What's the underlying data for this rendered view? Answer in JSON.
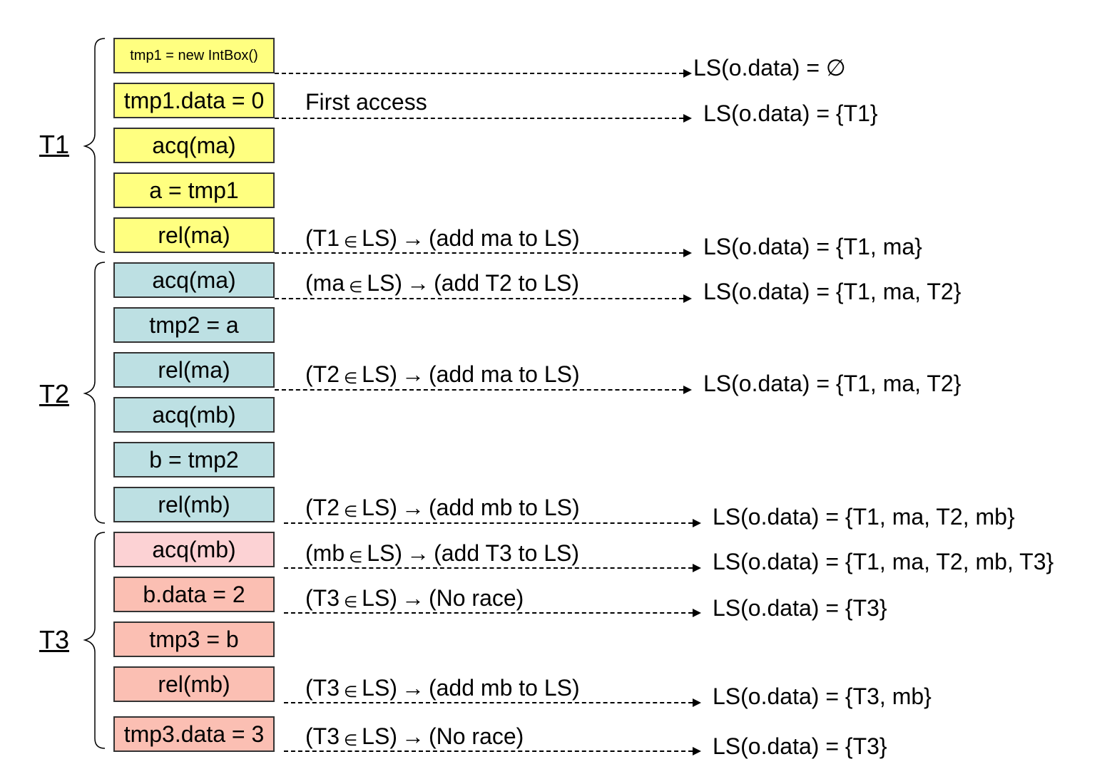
{
  "threads": [
    {
      "label": "T1"
    },
    {
      "label": "T2"
    },
    {
      "label": "T3"
    }
  ],
  "steps": [
    {
      "text": "tmp1 = new IntBox()",
      "thread": "T1"
    },
    {
      "text": "tmp1.data = 0",
      "thread": "T1"
    },
    {
      "text": "acq(ma)",
      "thread": "T1"
    },
    {
      "text": "a = tmp1",
      "thread": "T1"
    },
    {
      "text": "rel(ma)",
      "thread": "T1"
    },
    {
      "text": "acq(ma)",
      "thread": "T2"
    },
    {
      "text": "tmp2 = a",
      "thread": "T2"
    },
    {
      "text": "rel(ma)",
      "thread": "T2"
    },
    {
      "text": "acq(mb)",
      "thread": "T2"
    },
    {
      "text": "b = tmp2",
      "thread": "T2"
    },
    {
      "text": "rel(mb)",
      "thread": "T2"
    },
    {
      "text": "acq(mb)",
      "thread": "T3"
    },
    {
      "text": "b.data = 2",
      "thread": "T3"
    },
    {
      "text": "tmp3 = b",
      "thread": "T3"
    },
    {
      "text": "rel(mb)",
      "thread": "T3"
    },
    {
      "text": "tmp3.data = 3",
      "thread": "T3"
    }
  ],
  "notes": [
    {
      "text": "First access"
    },
    {
      "pre": "(T1",
      "elem": "∈",
      "mid": "LS)",
      "imp": "→",
      "post": "(add ma to LS)"
    },
    {
      "pre": "(ma",
      "elem": "∈",
      "mid": "LS)",
      "imp": "→",
      "post": "(add T2 to LS)"
    },
    {
      "pre": "(T2",
      "elem": "∈",
      "mid": "LS)",
      "imp": "→",
      "post": "(add ma to LS)"
    },
    {
      "pre": "(T2",
      "elem": "∈",
      "mid": "LS)",
      "imp": "→",
      "post": "(add mb to LS)"
    },
    {
      "pre": "(mb",
      "elem": "∈",
      "mid": "LS)",
      "imp": "→",
      "post": "(add T3 to LS)"
    },
    {
      "pre": "(T3",
      "elem": "∈",
      "mid": "LS)",
      "imp": "→",
      "post": "(No race)"
    },
    {
      "pre": "(T3",
      "elem": "∈",
      "mid": "LS)",
      "imp": "→",
      "post": "(add mb to LS)"
    },
    {
      "pre": "(T3",
      "elem": "∈",
      "mid": "LS)",
      "imp": "→",
      "post": "(No race)"
    }
  ],
  "lockset_states": [
    {
      "text": "LS(o.data) = ∅"
    },
    {
      "text": "LS(o.data) = {T1}"
    },
    {
      "text": "LS(o.data) = {T1, ma}"
    },
    {
      "text": "LS(o.data) = {T1, ma, T2}"
    },
    {
      "text": "LS(o.data) = {T1, ma, T2}"
    },
    {
      "text": "LS(o.data) = {T1, ma, T2, mb}"
    },
    {
      "text": "LS(o.data) = {T1, ma, T2, mb, T3}"
    },
    {
      "text": "LS(o.data) = {T3}"
    },
    {
      "text": "LS(o.data) = {T3, mb}"
    },
    {
      "text": "LS(o.data) = {T3}"
    }
  ],
  "colors": {
    "t1": "#ffff80",
    "t2": "#bde0e3",
    "t3_first": "#fcd2d4",
    "t3": "#fbbfb3"
  }
}
